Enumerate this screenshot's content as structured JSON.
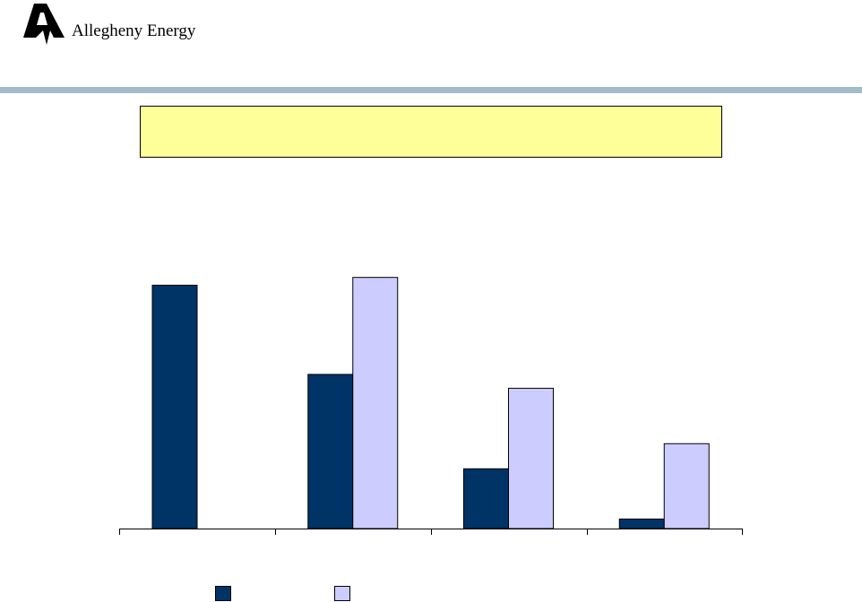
{
  "logo": {
    "text": "Allegheny Energy"
  },
  "chart_data": {
    "type": "bar",
    "categories": [
      null,
      null,
      null,
      null
    ],
    "series": [
      {
        "color": "#003366",
        "values": [
          281,
          178,
          69,
          11
        ]
      },
      {
        "color": "#ccccff",
        "values": [
          null,
          290,
          162,
          98
        ]
      }
    ],
    "ylim": [
      0,
      300
    ]
  }
}
